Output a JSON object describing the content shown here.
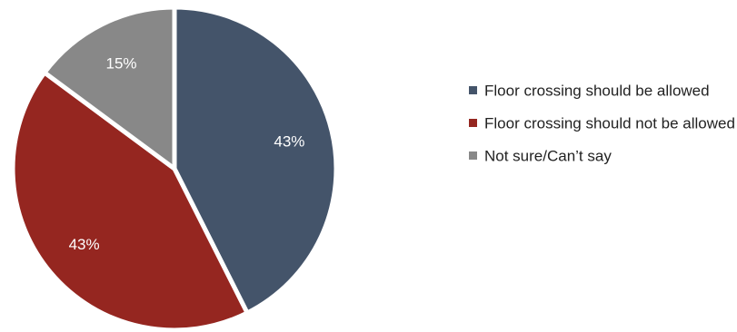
{
  "chart_data": {
    "type": "pie",
    "title": "",
    "legend_position": "right",
    "slices": [
      {
        "label": "Floor crossing should be allowed",
        "value": 43,
        "display": "43%",
        "color": "#44546a"
      },
      {
        "label": "Floor crossing should not be allowed",
        "value": 43,
        "display": "43%",
        "color": "#952620"
      },
      {
        "label": "Not sure/Can’t say",
        "value": 15,
        "display": "15%",
        "color": "#888888"
      }
    ]
  }
}
